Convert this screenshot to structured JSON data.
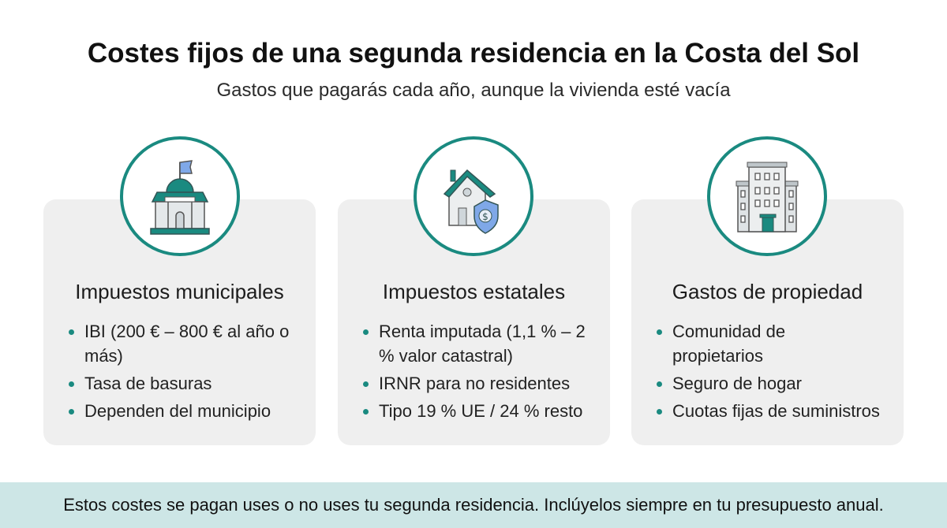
{
  "title": "Costes fijos de una segunda residencia en la Costa del Sol",
  "subtitle": "Gastos que pagarás cada año, aunque la vivienda esté vacía",
  "colors": {
    "accent": "#1a8a80",
    "card": "#efefef",
    "footer": "#cde6e6",
    "icon_blue": "#7fa8e8"
  },
  "cards": [
    {
      "icon": "town-hall-icon",
      "heading": "Impuestos municipales",
      "items": [
        "IBI (200 € – 800 € al año o más)",
        "Tasa de basuras",
        "Dependen del municipio"
      ]
    },
    {
      "icon": "house-shield-icon",
      "heading": "Impuestos estatales",
      "items": [
        "Renta imputada (1,1 % – 2 % valor catastral)",
        "IRNR para no residentes",
        "Tipo 19 % UE / 24 % resto"
      ]
    },
    {
      "icon": "apartment-building-icon",
      "heading": "Gastos de propiedad",
      "items": [
        "Comunidad de propietarios",
        "Seguro de hogar",
        "Cuotas fijas de suministros"
      ]
    }
  ],
  "footer": "Estos costes se pagan uses o no uses tu segunda residencia. Inclúyelos siempre en tu presupuesto anual."
}
